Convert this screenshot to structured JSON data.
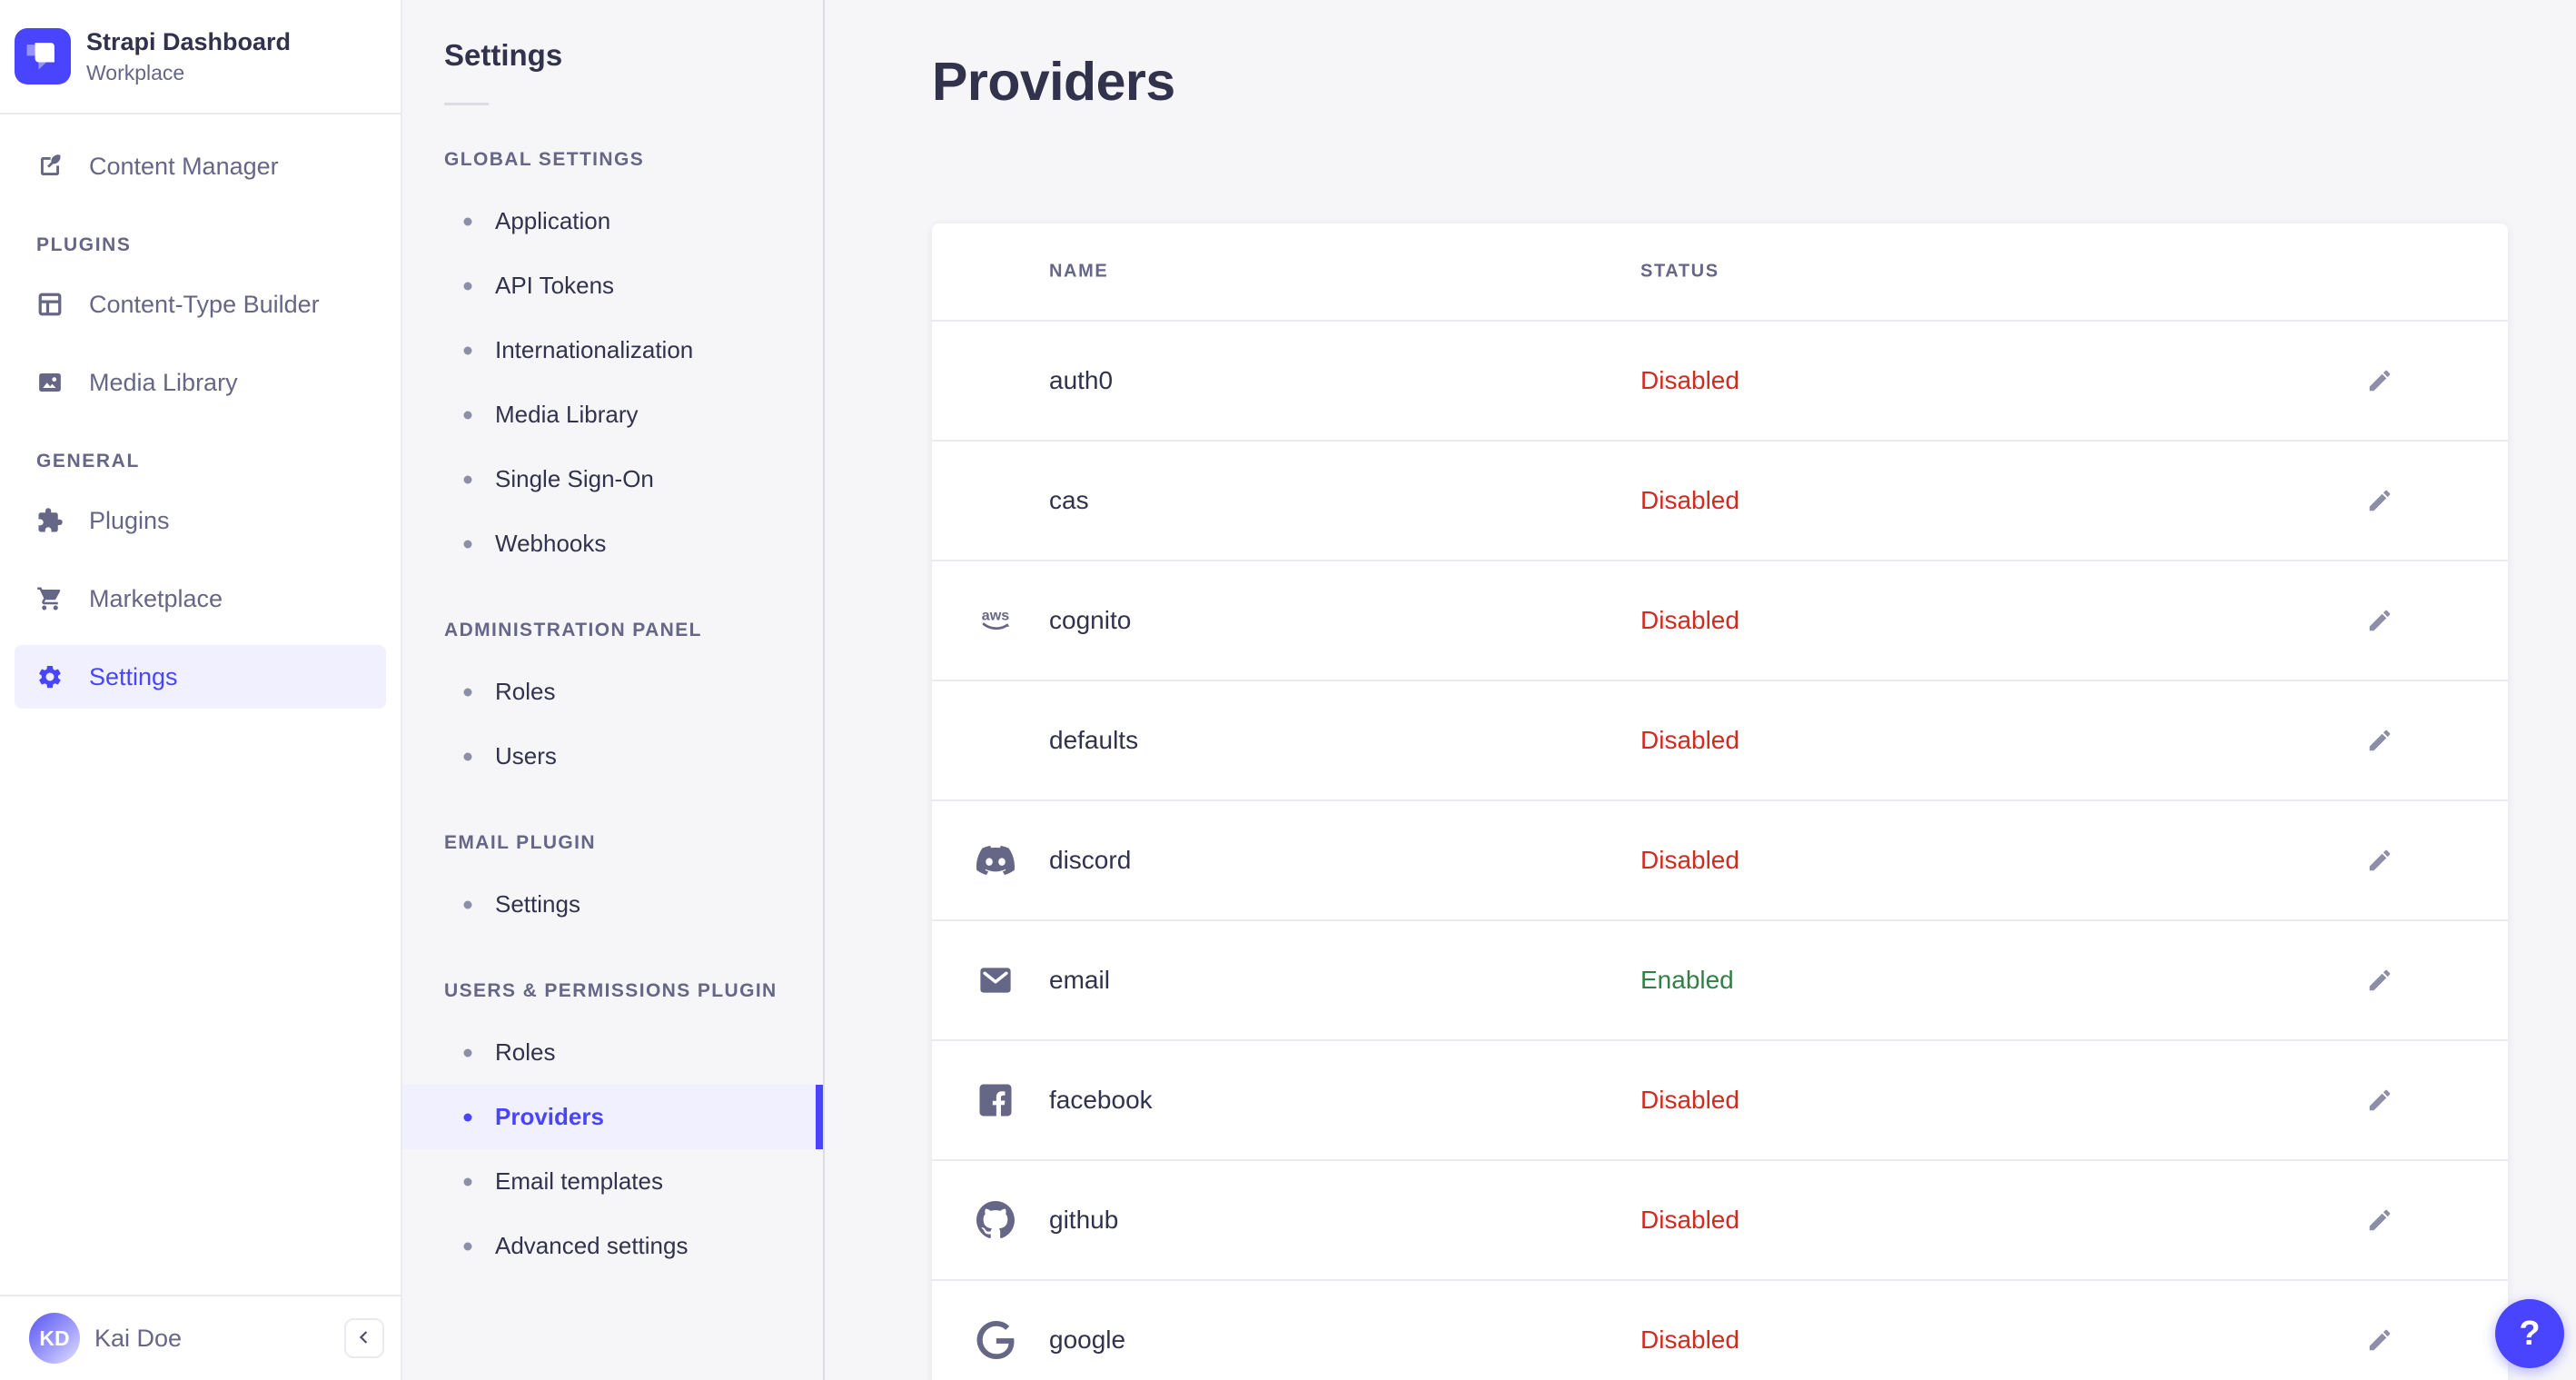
{
  "colors": {
    "primary": "#4945ff",
    "primary_bg": "#f0f0ff",
    "danger": "#d02b20",
    "success": "#328048",
    "text_dark": "#32324d",
    "text_muted": "#666687",
    "page_bg": "#f6f6f9"
  },
  "brand": {
    "title": "Strapi Dashboard",
    "subtitle": "Workplace",
    "logo_icon": "strapi-logo-icon"
  },
  "sidebar": {
    "primary_items": [
      {
        "label": "Content Manager",
        "icon": "feather-icon"
      }
    ],
    "sections": [
      {
        "label": "PLUGINS",
        "items": [
          {
            "label": "Content-Type Builder",
            "icon": "grid-icon"
          },
          {
            "label": "Media Library",
            "icon": "image-icon"
          }
        ]
      },
      {
        "label": "GENERAL",
        "items": [
          {
            "label": "Plugins",
            "icon": "puzzle-icon"
          },
          {
            "label": "Marketplace",
            "icon": "cart-icon"
          },
          {
            "label": "Settings",
            "icon": "gear-icon",
            "active": true
          }
        ]
      }
    ],
    "user": {
      "name": "Kai Doe",
      "initials": "KD"
    },
    "collapse_icon": "chevron-left-icon"
  },
  "subnav": {
    "title": "Settings",
    "sections": [
      {
        "label": "GLOBAL SETTINGS",
        "items": [
          {
            "label": "Application"
          },
          {
            "label": "API Tokens"
          },
          {
            "label": "Internationalization"
          },
          {
            "label": "Media Library"
          },
          {
            "label": "Single Sign-On"
          },
          {
            "label": "Webhooks"
          }
        ]
      },
      {
        "label": "ADMINISTRATION PANEL",
        "items": [
          {
            "label": "Roles"
          },
          {
            "label": "Users"
          }
        ]
      },
      {
        "label": "EMAIL PLUGIN",
        "items": [
          {
            "label": "Settings"
          }
        ]
      },
      {
        "label": "USERS & PERMISSIONS PLUGIN",
        "items": [
          {
            "label": "Roles"
          },
          {
            "label": "Providers",
            "active": true
          },
          {
            "label": "Email templates"
          },
          {
            "label": "Advanced settings"
          }
        ]
      }
    ]
  },
  "main": {
    "title": "Providers",
    "table": {
      "columns": [
        "NAME",
        "STATUS"
      ],
      "rows": [
        {
          "name": "auth0",
          "icon": null,
          "status": "Disabled"
        },
        {
          "name": "cas",
          "icon": null,
          "status": "Disabled"
        },
        {
          "name": "cognito",
          "icon": "aws-icon",
          "status": "Disabled"
        },
        {
          "name": "defaults",
          "icon": null,
          "status": "Disabled"
        },
        {
          "name": "discord",
          "icon": "discord-icon",
          "status": "Disabled"
        },
        {
          "name": "email",
          "icon": "email-icon",
          "status": "Enabled"
        },
        {
          "name": "facebook",
          "icon": "facebook-icon",
          "status": "Disabled"
        },
        {
          "name": "github",
          "icon": "github-icon",
          "status": "Disabled"
        },
        {
          "name": "google",
          "icon": "google-icon",
          "status": "Disabled"
        }
      ]
    }
  },
  "help": {
    "label": "?"
  }
}
